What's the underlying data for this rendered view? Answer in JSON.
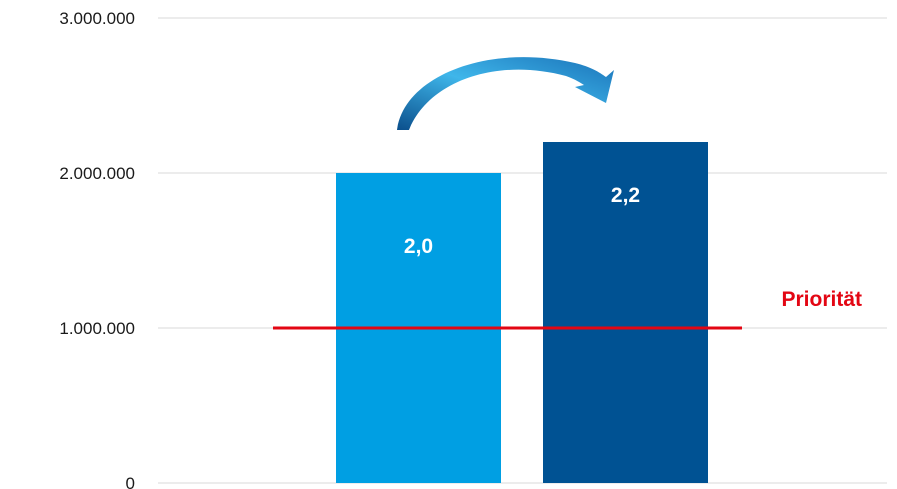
{
  "chart_data": {
    "type": "bar",
    "categories": [
      "",
      ""
    ],
    "values": [
      2000000,
      2200000
    ],
    "data_labels": [
      "2,0",
      "2,2"
    ],
    "ylim": [
      0,
      3000000
    ],
    "yticks": [
      0,
      1000000,
      2000000,
      3000000
    ],
    "ytick_labels": [
      "0",
      "1.000.000",
      "2.000.000",
      "3.000.000"
    ],
    "grid": true,
    "bar_colors": [
      "#009fe3",
      "#005293"
    ],
    "reference_line": {
      "value": 1000000,
      "label": "Priorität",
      "color": "#e30613"
    },
    "annotation": {
      "type": "curved-arrow",
      "from_bar": 0,
      "to_bar": 1,
      "color": "#1a72b8"
    }
  }
}
